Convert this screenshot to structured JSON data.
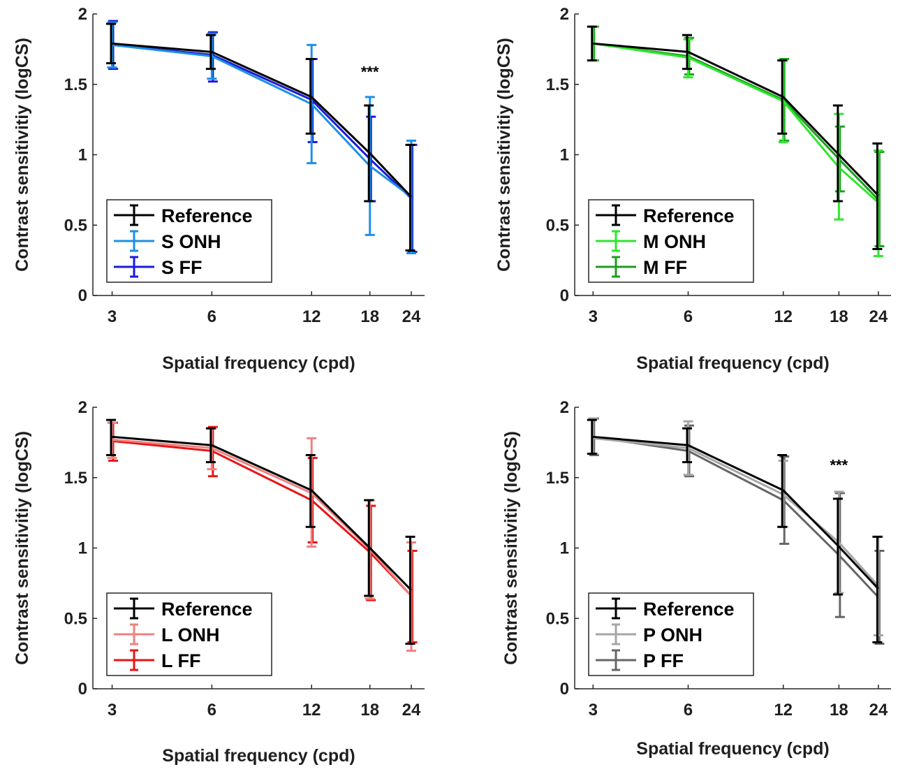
{
  "chart_data": [
    {
      "type": "line",
      "xlabel": "Spatial frequency (cpd)",
      "ylabel": "Contrast sensitivitiy (logCS)",
      "x": [
        3,
        6,
        12,
        18,
        24
      ],
      "x_tick_labels": [
        "3",
        "6",
        "12",
        "18",
        "24"
      ],
      "ylim": [
        0,
        2
      ],
      "y_ticks": [
        0,
        0.5,
        1,
        1.5,
        2
      ],
      "y_tick_labels": [
        "0",
        "0.5",
        "1",
        "1.5",
        "2"
      ],
      "grid": false,
      "legend_position": "bottom-left",
      "annotations": [
        {
          "text": "***",
          "x": 18,
          "y": 1.55
        }
      ],
      "series": [
        {
          "name": "Reference",
          "color": "#000000",
          "values": [
            1.79,
            1.73,
            1.41,
            1.01,
            0.7
          ],
          "err_low": [
            1.65,
            1.61,
            1.15,
            0.67,
            0.32
          ],
          "err_high": [
            1.93,
            1.85,
            1.68,
            1.35,
            1.07
          ]
        },
        {
          "name": "S ONH",
          "color": "#1e8fe6",
          "values": [
            1.78,
            1.7,
            1.36,
            0.92,
            0.7
          ],
          "err_low": [
            1.62,
            1.54,
            0.94,
            0.43,
            0.3
          ],
          "err_high": [
            1.94,
            1.86,
            1.78,
            1.41,
            1.1
          ]
        },
        {
          "name": "S FF",
          "color": "#1a1adf",
          "values": [
            1.78,
            1.71,
            1.39,
            0.97,
            0.69
          ],
          "err_low": [
            1.61,
            1.52,
            1.09,
            0.67,
            0.31
          ],
          "err_high": [
            1.95,
            1.87,
            1.68,
            1.27,
            1.07
          ]
        }
      ]
    },
    {
      "type": "line",
      "xlabel": "Spatial frequency (cpd)",
      "ylabel": "Contrast sensitivitiy (logCS)",
      "x": [
        3,
        6,
        12,
        18,
        24
      ],
      "x_tick_labels": [
        "3",
        "6",
        "12",
        "18",
        "24"
      ],
      "ylim": [
        0,
        2
      ],
      "y_ticks": [
        0,
        0.5,
        1,
        1.5,
        2
      ],
      "y_tick_labels": [
        "0",
        "0.5",
        "1",
        "1.5",
        "2"
      ],
      "grid": false,
      "legend_position": "bottom-left",
      "annotations": [],
      "series": [
        {
          "name": "Reference",
          "color": "#000000",
          "values": [
            1.79,
            1.73,
            1.41,
            1.0,
            0.71
          ],
          "err_low": [
            1.67,
            1.61,
            1.15,
            0.67,
            0.33
          ],
          "err_high": [
            1.91,
            1.85,
            1.67,
            1.35,
            1.08
          ]
        },
        {
          "name": "M ONH",
          "color": "#2ee62e",
          "values": [
            1.79,
            1.69,
            1.38,
            0.91,
            0.66
          ],
          "err_low": [
            1.67,
            1.55,
            1.09,
            0.54,
            0.28
          ],
          "err_high": [
            1.91,
            1.82,
            1.67,
            1.29,
            1.03
          ]
        },
        {
          "name": "M FF",
          "color": "#1e9e1e",
          "values": [
            1.79,
            1.7,
            1.39,
            0.97,
            0.68
          ],
          "err_low": [
            1.67,
            1.57,
            1.1,
            0.74,
            0.35
          ],
          "err_high": [
            1.91,
            1.83,
            1.68,
            1.2,
            1.02
          ]
        }
      ]
    },
    {
      "type": "line",
      "xlabel": "Spatial frequency (cpd)",
      "ylabel": "Contrast sensitivitiy (logCS)",
      "x": [
        3,
        6,
        12,
        18,
        24
      ],
      "x_tick_labels": [
        "3",
        "6",
        "12",
        "18",
        "24"
      ],
      "ylim": [
        0,
        2
      ],
      "y_ticks": [
        0,
        0.5,
        1,
        1.5,
        2
      ],
      "y_tick_labels": [
        "0",
        "0.5",
        "1",
        "1.5",
        "2"
      ],
      "grid": false,
      "legend_position": "bottom-left",
      "annotations": [],
      "series": [
        {
          "name": "Reference",
          "color": "#000000",
          "values": [
            1.79,
            1.73,
            1.41,
            1.0,
            0.7
          ],
          "err_low": [
            1.66,
            1.61,
            1.15,
            0.66,
            0.32
          ],
          "err_high": [
            1.91,
            1.85,
            1.66,
            1.34,
            1.08
          ]
        },
        {
          "name": "L ONH",
          "color": "#f08080",
          "values": [
            1.77,
            1.71,
            1.39,
            0.99,
            0.66
          ],
          "err_low": [
            1.64,
            1.56,
            1.01,
            0.64,
            0.27
          ],
          "err_high": [
            1.89,
            1.85,
            1.78,
            1.34,
            1.04
          ]
        },
        {
          "name": "L FF",
          "color": "#e81515",
          "values": [
            1.76,
            1.69,
            1.34,
            0.97,
            0.66
          ],
          "err_low": [
            1.62,
            1.51,
            1.04,
            0.63,
            0.33
          ],
          "err_high": [
            1.89,
            1.86,
            1.64,
            1.3,
            0.98
          ]
        }
      ]
    },
    {
      "type": "line",
      "xlabel": "Spatial frequency (cpd)",
      "ylabel": "Contrast sensitivitiy (logCS)",
      "x": [
        3,
        6,
        12,
        18,
        24
      ],
      "x_tick_labels": [
        "3",
        "6",
        "12",
        "18",
        "24"
      ],
      "ylim": [
        0,
        2
      ],
      "y_ticks": [
        0,
        0.5,
        1,
        1.5,
        2
      ],
      "y_tick_labels": [
        "0",
        "0.5",
        "1",
        "1.5",
        "2"
      ],
      "grid": false,
      "legend_position": "bottom-left",
      "annotations": [
        {
          "text": "***",
          "x": 18,
          "y": 1.55
        }
      ],
      "series": [
        {
          "name": "Reference",
          "color": "#000000",
          "values": [
            1.79,
            1.73,
            1.41,
            1.01,
            0.71
          ],
          "err_low": [
            1.67,
            1.61,
            1.15,
            0.67,
            0.33
          ],
          "err_high": [
            1.91,
            1.85,
            1.66,
            1.35,
            1.08
          ]
        },
        {
          "name": "P ONH",
          "color": "#a6a6a6",
          "values": [
            1.78,
            1.71,
            1.38,
            1.04,
            0.73
          ],
          "err_low": [
            1.67,
            1.52,
            1.15,
            0.68,
            0.38
          ],
          "err_high": [
            1.92,
            1.9,
            1.62,
            1.4,
            1.08
          ]
        },
        {
          "name": "P FF",
          "color": "#666666",
          "values": [
            1.79,
            1.69,
            1.34,
            0.95,
            0.65
          ],
          "err_low": [
            1.66,
            1.51,
            1.03,
            0.51,
            0.32
          ],
          "err_high": [
            1.92,
            1.87,
            1.65,
            1.39,
            0.98
          ]
        }
      ]
    }
  ]
}
